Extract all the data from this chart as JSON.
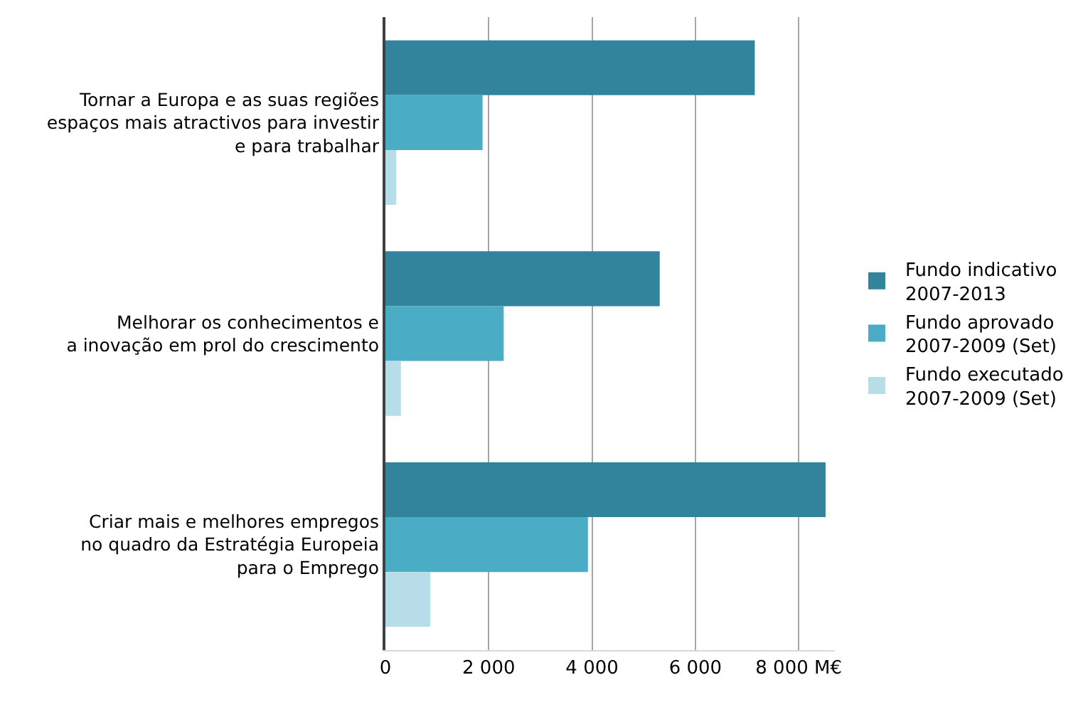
{
  "chart_data": {
    "type": "bar",
    "orientation": "horizontal",
    "categories": [
      "Tornar a Europa e as suas regiões\nespaços mais atractivos para investir\ne para trabalhar",
      "Melhorar os conhecimentos e\na inovação em prol do crescimento",
      "Criar mais e melhores empregos\nno quadro da Estratégia Europeia\npara o Emprego"
    ],
    "series": [
      {
        "name": "Fundo indicativo\n2007-2013",
        "color": "#31849b",
        "values": [
          7150,
          5310,
          8520
        ]
      },
      {
        "name": "Fundo aprovado\n2007-2009 (Set)",
        "color": "#4bacc6",
        "values": [
          1880,
          2290,
          3920
        ]
      },
      {
        "name": "Fundo executado\n2007-2009 (Set)",
        "color": "#b7dee8",
        "values": [
          210,
          300,
          870
        ]
      }
    ],
    "xlim": [
      0,
      8700
    ],
    "xticks": [
      0,
      {
        "value": 2000,
        "label": "2 000"
      },
      {
        "value": 4000,
        "label": "4 000"
      },
      {
        "value": 6000,
        "label": "6 000"
      },
      {
        "value": 8000,
        "label": "8 000 M€"
      }
    ],
    "grid": "x",
    "legend": "right"
  }
}
